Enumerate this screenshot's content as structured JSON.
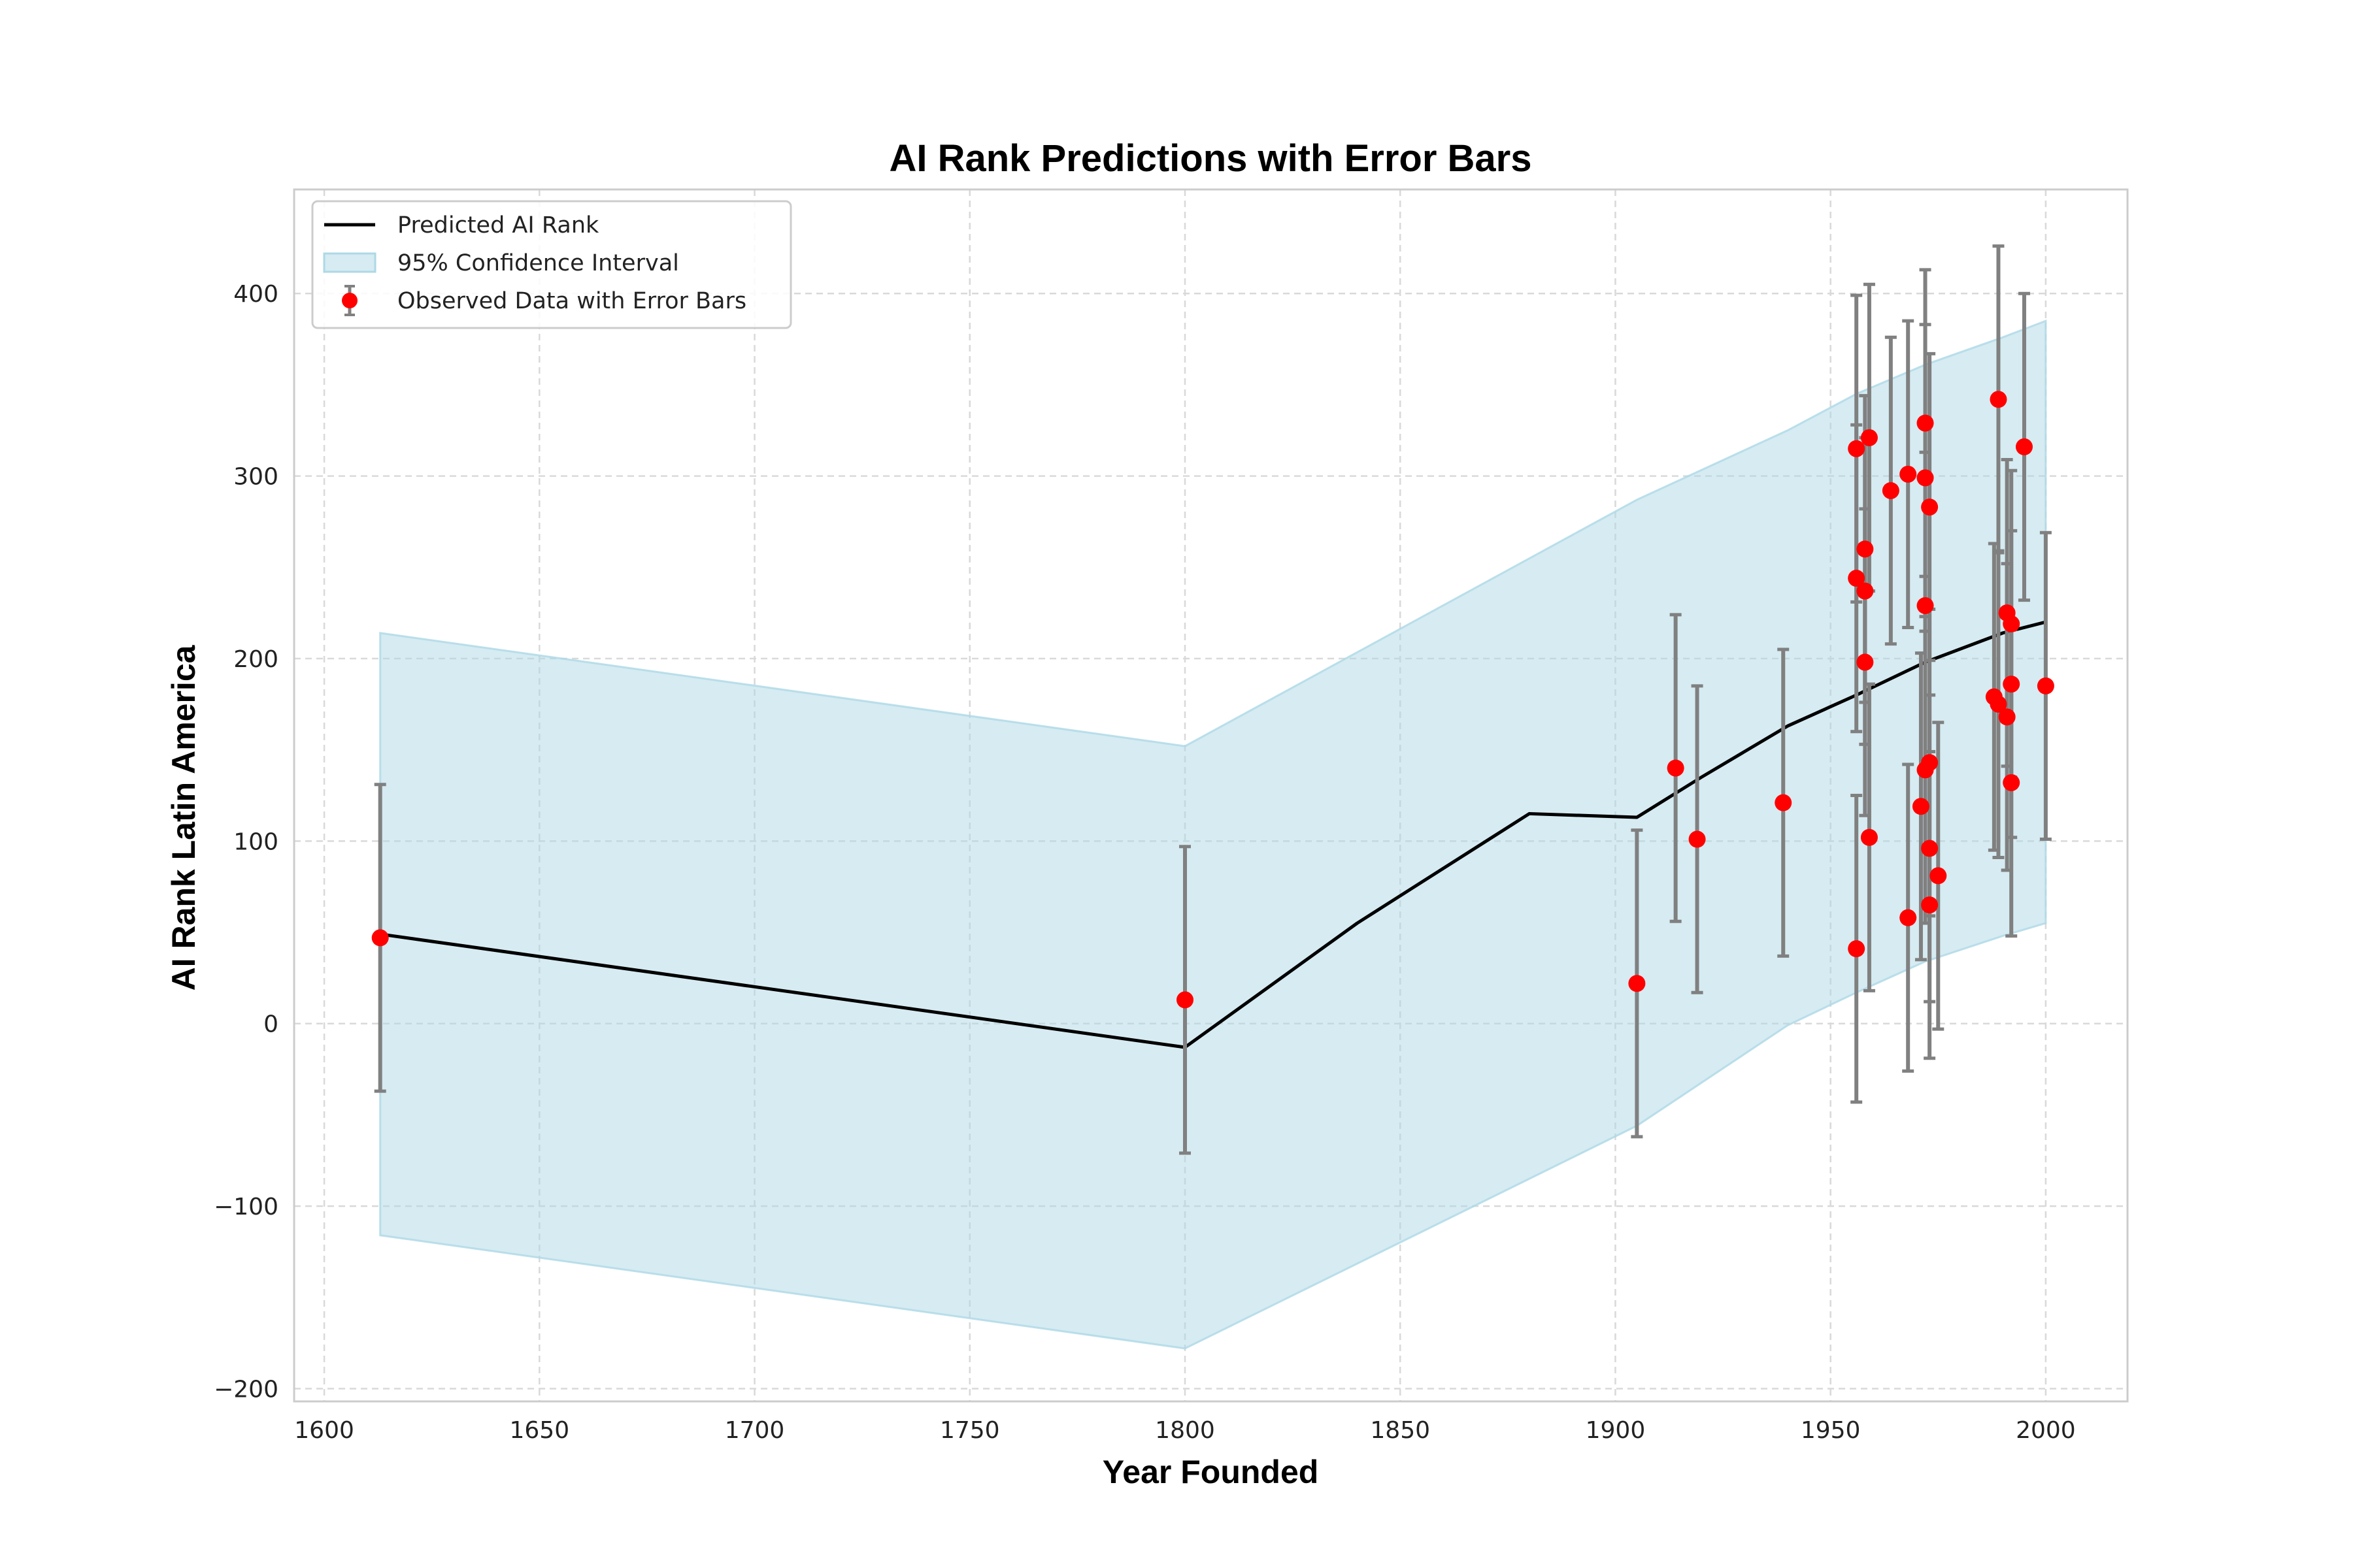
{
  "chart_data": {
    "type": "scatter",
    "title": "AI Rank Predictions with Error Bars",
    "xlabel": "Year Founded",
    "ylabel": "AI Rank Latin America",
    "xlim": [
      1593,
      2019
    ],
    "ylim": [
      -207,
      457
    ],
    "xticks": [
      1600,
      1650,
      1700,
      1750,
      1800,
      1850,
      1900,
      1950,
      2000
    ],
    "yticks": [
      -200,
      -100,
      0,
      100,
      200,
      300,
      400
    ],
    "ytick_labels": [
      "−200",
      "−100",
      "0",
      "100",
      "200",
      "300",
      "400"
    ],
    "grid": true,
    "legend_position": "top-left",
    "colors": {
      "prediction_line": "#000000",
      "confidence_band": "#add8e6",
      "points": "#ff0000",
      "error_bars": "#808080",
      "grid": "#d9d9d9",
      "frame": "#cccccc"
    },
    "legend": [
      {
        "kind": "line",
        "label": "Predicted AI Rank"
      },
      {
        "kind": "band",
        "label": "95% Confidence Interval"
      },
      {
        "kind": "errorpoint",
        "label": "Observed Data with Error Bars"
      }
    ],
    "prediction": {
      "name": "Predicted AI Rank",
      "x": [
        1613,
        1800,
        1840,
        1880,
        1905,
        1920,
        1940,
        1956,
        1972,
        1990,
        2000
      ],
      "y": [
        49,
        -13,
        55,
        115,
        113,
        135,
        163,
        180,
        198,
        214,
        220
      ]
    },
    "confidence_interval": {
      "name": "95% Confidence Interval",
      "x": [
        1613,
        1800,
        1905,
        1940,
        1956,
        1972,
        1990,
        2000
      ],
      "upper": [
        214,
        152,
        287,
        325,
        345,
        361,
        376,
        385
      ],
      "lower": [
        -116,
        -178,
        -56,
        -1,
        17,
        34,
        48,
        55
      ]
    },
    "observed": {
      "name": "Observed Data with Error Bars",
      "points": [
        {
          "x": 1613,
          "y": 47,
          "err": 84
        },
        {
          "x": 1800,
          "y": 13,
          "err": 84
        },
        {
          "x": 1905,
          "y": 22,
          "err": 84
        },
        {
          "x": 1914,
          "y": 140,
          "err": 84
        },
        {
          "x": 1919,
          "y": 101,
          "err": 84
        },
        {
          "x": 1939,
          "y": 121,
          "err": 84
        },
        {
          "x": 1956,
          "y": 315,
          "err": 84
        },
        {
          "x": 1956,
          "y": 244,
          "err": 84
        },
        {
          "x": 1956,
          "y": 41,
          "err": 84
        },
        {
          "x": 1958,
          "y": 260,
          "err": 84
        },
        {
          "x": 1958,
          "y": 237,
          "err": 84
        },
        {
          "x": 1958,
          "y": 198,
          "err": 84
        },
        {
          "x": 1959,
          "y": 321,
          "err": 84
        },
        {
          "x": 1959,
          "y": 102,
          "err": 84
        },
        {
          "x": 1964,
          "y": 292,
          "err": 84
        },
        {
          "x": 1968,
          "y": 301,
          "err": 84
        },
        {
          "x": 1968,
          "y": 58,
          "err": 84
        },
        {
          "x": 1971,
          "y": 119,
          "err": 84
        },
        {
          "x": 1972,
          "y": 329,
          "err": 84
        },
        {
          "x": 1972,
          "y": 299,
          "err": 84
        },
        {
          "x": 1972,
          "y": 229,
          "err": 84
        },
        {
          "x": 1972,
          "y": 139,
          "err": 84
        },
        {
          "x": 1973,
          "y": 283,
          "err": 84
        },
        {
          "x": 1973,
          "y": 143,
          "err": 84
        },
        {
          "x": 1973,
          "y": 96,
          "err": 84
        },
        {
          "x": 1973,
          "y": 65,
          "err": 84
        },
        {
          "x": 1975,
          "y": 81,
          "err": 84
        },
        {
          "x": 1988,
          "y": 179,
          "err": 84
        },
        {
          "x": 1989,
          "y": 342,
          "err": 84
        },
        {
          "x": 1989,
          "y": 175,
          "err": 84
        },
        {
          "x": 1991,
          "y": 225,
          "err": 84
        },
        {
          "x": 1991,
          "y": 168,
          "err": 84
        },
        {
          "x": 1992,
          "y": 219,
          "err": 84
        },
        {
          "x": 1992,
          "y": 186,
          "err": 84
        },
        {
          "x": 1992,
          "y": 132,
          "err": 84
        },
        {
          "x": 1995,
          "y": 316,
          "err": 84
        },
        {
          "x": 2000,
          "y": 185,
          "err": 84
        }
      ]
    }
  }
}
